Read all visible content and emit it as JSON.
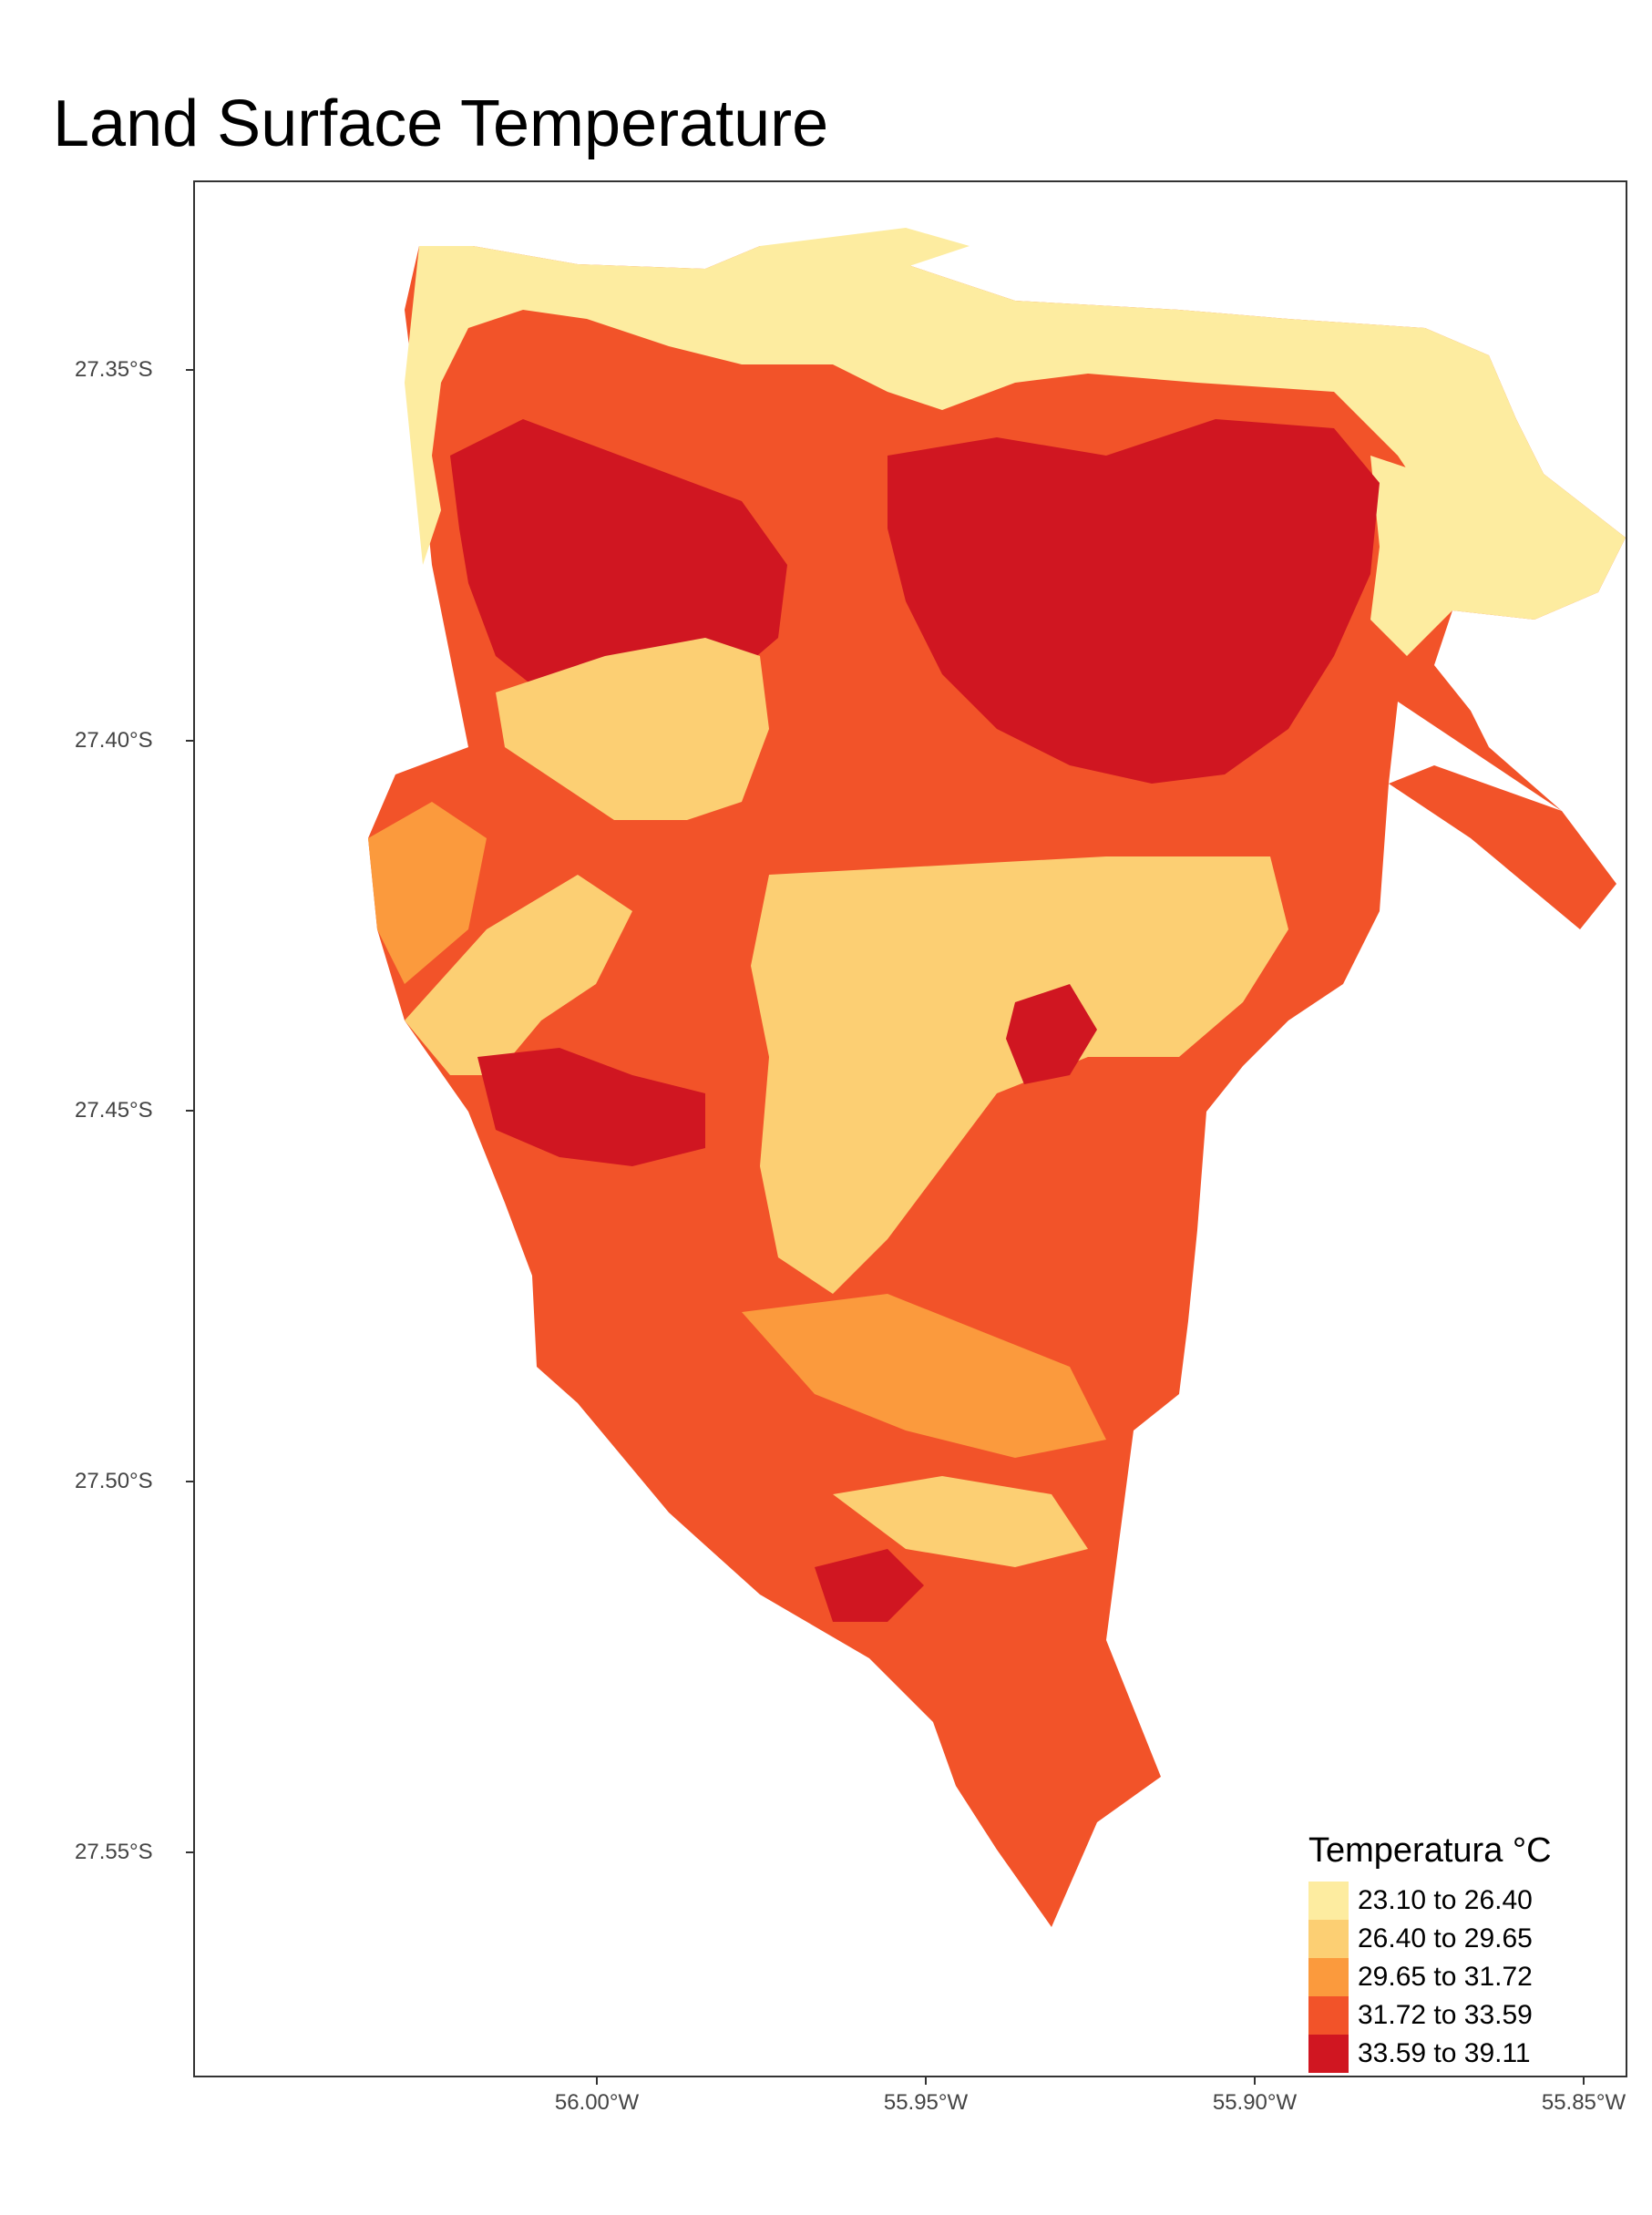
{
  "title": "Land Surface Temperature",
  "axes": {
    "y_ticks": [
      "27.35°S",
      "27.40°S",
      "27.45°S",
      "27.50°S",
      "27.55°S"
    ],
    "x_ticks": [
      "56.00°W",
      "55.95°W",
      "55.90°W",
      "55.85°W"
    ]
  },
  "legend": {
    "title": "Temperatura °C",
    "classes": [
      {
        "label": "23.10 to 26.40",
        "color": "#fdeca0"
      },
      {
        "label": "26.40 to 29.65",
        "color": "#fccf73"
      },
      {
        "label": "29.65 to 31.72",
        "color": "#fb9a3d"
      },
      {
        "label": "31.72 to 33.59",
        "color": "#f25329"
      },
      {
        "label": "33.59 to 39.11",
        "color": "#d01621"
      }
    ]
  }
}
